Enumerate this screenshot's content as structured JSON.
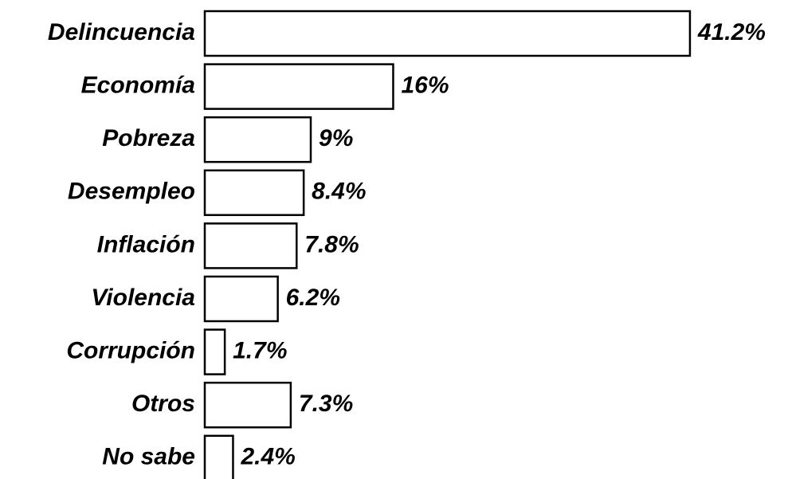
{
  "chart_data": {
    "type": "bar",
    "categories": [
      "Delincuencia",
      "Economía",
      "Pobreza",
      "Desempleo",
      "Inflación",
      "Violencia",
      "Corrupción",
      "Otros",
      "No sabe"
    ],
    "values": [
      41.2,
      16,
      9,
      8.4,
      7.8,
      6.2,
      1.7,
      7.3,
      2.4
    ],
    "value_labels": [
      "41.2%",
      "16%",
      "9%",
      "8.4%",
      "7.8%",
      "6.2%",
      "1.7%",
      "7.3%",
      "2.4%"
    ],
    "color": "#ffffff"
  }
}
